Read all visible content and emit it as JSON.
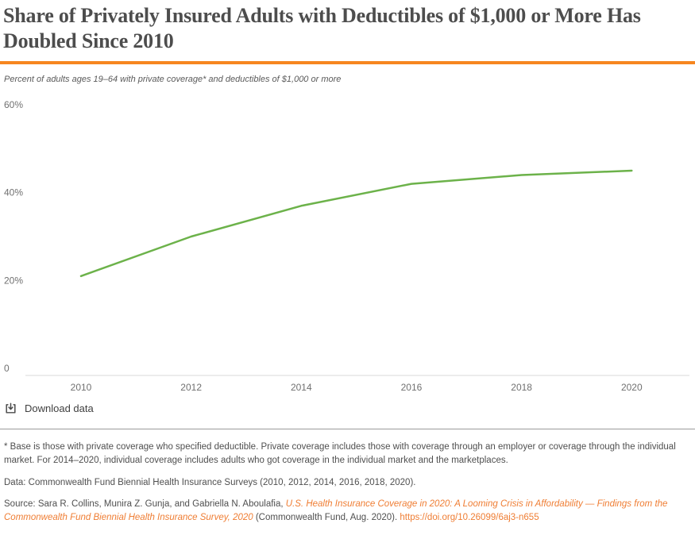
{
  "page": {
    "title": "Share of Privately Insured Adults with Deductibles of $1,000 or More Has Doubled Since 2010",
    "subtitle": "Percent of adults ages 19–64 with private coverage* and deductibles of $1,000 or more"
  },
  "colors": {
    "accent_orange": "#f6861f",
    "line_green": "#6cb24a",
    "link_orange": "#ef7d33",
    "axis_gray": "#d9d9d9",
    "label_gray": "#707070"
  },
  "chart_data": {
    "type": "line",
    "title": "Share of Privately Insured Adults with Deductibles of $1,000 or More Has Doubled Since 2010",
    "subtitle": "Percent of adults ages 19–64 with private coverage* and deductibles of $1,000 or more",
    "categories": [
      "2010",
      "2012",
      "2014",
      "2016",
      "2018",
      "2020"
    ],
    "series": [
      {
        "name": "Adults with private coverage and deductibles of $1,000 or more (%)",
        "values": [
          21,
          30,
          37,
          42,
          44,
          45
        ]
      }
    ],
    "xlabel": "",
    "ylabel": "",
    "ylim": [
      0,
      60
    ],
    "yticks": [
      {
        "value": 60,
        "label": "60%"
      },
      {
        "value": 40,
        "label": "40%"
      },
      {
        "value": 20,
        "label": "20%"
      },
      {
        "value": 0,
        "label": "0"
      }
    ],
    "grid": false,
    "legend": "none",
    "line_color": "#6cb24a"
  },
  "toolbar": {
    "download_label": "Download data"
  },
  "footnotes": {
    "base_note": "* Base is those with private coverage who specified deductible. Private coverage includes those with coverage through an employer or coverage through the individual market. For 2014–2020, individual coverage includes adults who got coverage in the individual market and the marketplaces.",
    "data_note": "Data: Commonwealth Fund Biennial Health Insurance Surveys (2010, 2012, 2014, 2016, 2018, 2020).",
    "source_prefix": "Source: Sara R. Collins, Munira Z. Gunja, and Gabriella N. Aboulafia, ",
    "source_link_text": "U.S. Health Insurance Coverage in 2020: A Looming Crisis in Affordability — Findings from the Commonwealth Fund Biennial Health Insurance Survey, 2020",
    "source_suffix": " (Commonwealth Fund, Aug. 2020). ",
    "doi_link_text": "https://doi.org/10.26099/6aj3-n655"
  }
}
